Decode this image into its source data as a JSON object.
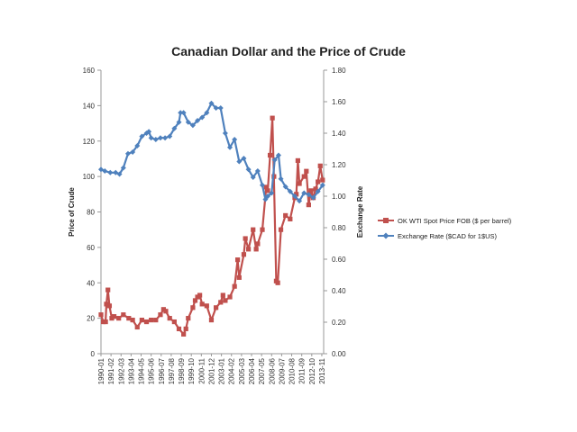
{
  "chart_data": {
    "type": "line",
    "title": "Canadian Dollar and the Price of Crude",
    "ylabel": "Price of Crude",
    "y2label": "Exchange Rate",
    "ylim": [
      0,
      160
    ],
    "y2lim": [
      0,
      1.8
    ],
    "yticks": [
      "0",
      "20",
      "40",
      "60",
      "80",
      "100",
      "120",
      "140",
      "160"
    ],
    "y2ticks": [
      "0.00",
      "0.20",
      "0.40",
      "0.60",
      "0.80",
      "1.00",
      "1.20",
      "1.40",
      "1.60",
      "1.80"
    ],
    "xticks": [
      "1990-01",
      "1991-02",
      "1992-03",
      "1993-04",
      "1994-05",
      "1995-06",
      "1996-07",
      "1997-08",
      "1998-09",
      "1999-10",
      "2000-11",
      "2001-12",
      "2003-01",
      "2004-02",
      "2005-03",
      "2006-04",
      "2007-05",
      "2008-06",
      "2009-07",
      "2010-08",
      "2011-09",
      "2012-10",
      "2013-11"
    ],
    "legend_position": "right",
    "grid": false,
    "series": [
      {
        "name": "OK WTI Spot Price FOB ($ per barrel)",
        "axis": "left",
        "color": "#c0504d",
        "marker": "square",
        "x": [
          "1990-01",
          "1990-04",
          "1990-07",
          "1990-08",
          "1990-10",
          "1990-12",
          "1991-03",
          "1991-06",
          "1991-12",
          "1992-06",
          "1993-01",
          "1993-06",
          "1993-12",
          "1994-06",
          "1994-12",
          "1995-06",
          "1995-12",
          "1996-06",
          "1996-10",
          "1997-01",
          "1997-06",
          "1997-12",
          "1998-06",
          "1998-12",
          "1999-03",
          "1999-06",
          "1999-12",
          "2000-03",
          "2000-06",
          "2000-09",
          "2000-12",
          "2001-06",
          "2001-12",
          "2002-06",
          "2002-12",
          "2003-03",
          "2003-06",
          "2003-12",
          "2004-06",
          "2004-10",
          "2004-12",
          "2005-06",
          "2005-08",
          "2005-12",
          "2006-06",
          "2006-10",
          "2006-12",
          "2007-06",
          "2007-11",
          "2008-01",
          "2008-04",
          "2008-07",
          "2008-09",
          "2008-12",
          "2009-02",
          "2009-06",
          "2009-12",
          "2010-06",
          "2010-12",
          "2011-02",
          "2011-04",
          "2011-06",
          "2011-12",
          "2012-03",
          "2012-06",
          "2012-09",
          "2012-12",
          "2013-03",
          "2013-06",
          "2013-09",
          "2013-12"
        ],
        "values": [
          22,
          18,
          18,
          28,
          36,
          27,
          20,
          21,
          20,
          22,
          20,
          19,
          15,
          19,
          18,
          19,
          19,
          22,
          25,
          24,
          20,
          18,
          14,
          11,
          14,
          20,
          26,
          30,
          32,
          33,
          28,
          27,
          19,
          26,
          29,
          33,
          30,
          32,
          38,
          53,
          43,
          56,
          65,
          59,
          70,
          59,
          62,
          70,
          94,
          92,
          112,
          133,
          100,
          41,
          40,
          70,
          78,
          76,
          88,
          90,
          109,
          96,
          100,
          103,
          84,
          92,
          88,
          93,
          97,
          106,
          98
        ]
      },
      {
        "name": "Exchange Rate ($CAD for 1$US)",
        "axis": "right",
        "color": "#4f81bd",
        "marker": "diamond",
        "x": [
          "1990-01",
          "1990-06",
          "1991-01",
          "1991-08",
          "1992-01",
          "1992-06",
          "1992-12",
          "1993-06",
          "1993-12",
          "1994-06",
          "1994-12",
          "1995-03",
          "1995-06",
          "1995-12",
          "1996-06",
          "1996-12",
          "1997-06",
          "1997-12",
          "1998-06",
          "1998-08",
          "1998-12",
          "1999-06",
          "1999-12",
          "2000-06",
          "2000-12",
          "2001-06",
          "2001-12",
          "2002-06",
          "2002-12",
          "2003-06",
          "2003-12",
          "2004-06",
          "2004-12",
          "2005-06",
          "2005-12",
          "2006-06",
          "2006-12",
          "2007-06",
          "2007-10",
          "2008-01",
          "2008-06",
          "2008-10",
          "2009-03",
          "2009-06",
          "2009-12",
          "2010-06",
          "2010-12",
          "2011-06",
          "2011-12",
          "2012-06",
          "2012-12",
          "2013-06",
          "2013-12"
        ],
        "values": [
          1.17,
          1.16,
          1.15,
          1.15,
          1.14,
          1.18,
          1.27,
          1.28,
          1.32,
          1.38,
          1.4,
          1.41,
          1.37,
          1.36,
          1.37,
          1.37,
          1.38,
          1.43,
          1.47,
          1.53,
          1.53,
          1.47,
          1.45,
          1.48,
          1.5,
          1.53,
          1.59,
          1.56,
          1.56,
          1.4,
          1.31,
          1.36,
          1.22,
          1.24,
          1.17,
          1.12,
          1.16,
          1.07,
          0.98,
          1.0,
          1.02,
          1.23,
          1.26,
          1.11,
          1.06,
          1.03,
          1.0,
          0.97,
          1.02,
          1.01,
          0.99,
          1.03,
          1.07
        ]
      }
    ]
  }
}
